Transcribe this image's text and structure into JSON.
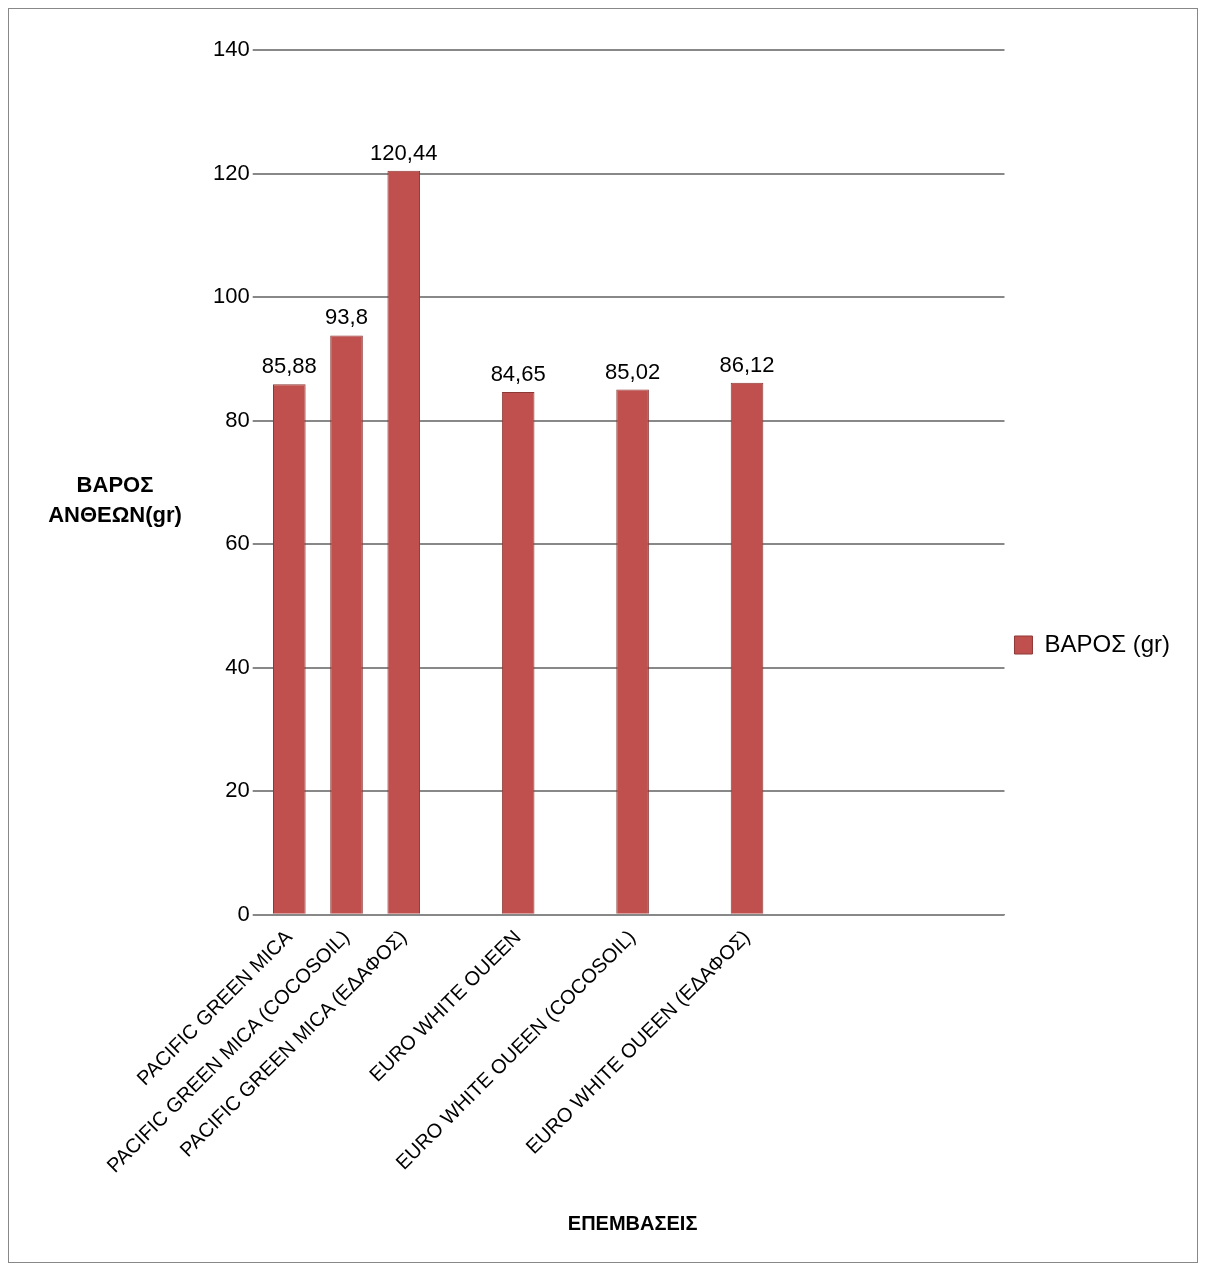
{
  "chart_data": {
    "type": "bar",
    "xlabel": "ΕΠΕΜΒΑΣΕΙΣ",
    "ylabel": "ΒΑΡΟΣ ΑΝΘΕΩΝ(gr)",
    "categories": [
      "PACIFIC GREEN MICA",
      "PACIFIC GREEN MICA (COCOSOIL)",
      "PACIFIC GREEN MICA (ΕΔΑΦΟΣ)",
      null,
      "EURO WHITE OUEEN",
      null,
      "EURO WHITE OUEEN (COCOSOIL)",
      null,
      "EURO WHITE OUEEN (ΕΔΑΦΟΣ)",
      null,
      null,
      null,
      null
    ],
    "series": [
      {
        "name": "ΒΑΡΟΣ (gr)",
        "color": "#c0504d",
        "values": [
          85.88,
          93.8,
          120.44,
          null,
          84.65,
          null,
          85.02,
          null,
          86.12,
          null,
          null,
          null,
          null
        ],
        "value_labels": [
          "85,88",
          "93,8",
          "120,44",
          null,
          "84,65",
          null,
          "85,02",
          null,
          "86,12",
          null,
          null,
          null,
          null
        ]
      }
    ],
    "ylim": [
      0,
      140
    ],
    "yticks": [
      0,
      20,
      40,
      60,
      80,
      100,
      120,
      140
    ],
    "grid": "y",
    "legend": "right"
  }
}
